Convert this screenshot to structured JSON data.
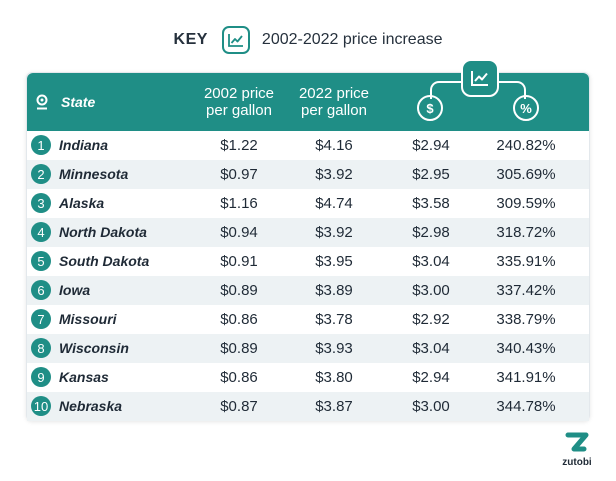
{
  "key": {
    "label": "KEY",
    "icon": "chart-line-icon",
    "description": "2002-2022 price increase"
  },
  "colors": {
    "accent": "#1f8e86",
    "row_alt": "#edf2f4",
    "text": "#1f2a36"
  },
  "header": {
    "state": "State",
    "price_2002": [
      "2002 price",
      "per gallon"
    ],
    "price_2022": [
      "2022 price",
      "per gallon"
    ],
    "dollar_icon": "dollar-icon",
    "percent_icon": "percent-icon",
    "group_icon": "chart-line-icon"
  },
  "chart_data": {
    "type": "table",
    "columns": [
      "State",
      "2002 price per gallon",
      "2022 price per gallon",
      "$",
      "%"
    ],
    "rows": [
      {
        "rank": "1",
        "state": "Indiana",
        "p2002": "$1.22",
        "p2022": "$4.16",
        "increase": "$2.94",
        "percent": "240.82%"
      },
      {
        "rank": "2",
        "state": "Minnesota",
        "p2002": "$0.97",
        "p2022": "$3.92",
        "increase": "$2.95",
        "percent": "305.69%"
      },
      {
        "rank": "3",
        "state": "Alaska",
        "p2002": "$1.16",
        "p2022": "$4.74",
        "increase": "$3.58",
        "percent": "309.59%"
      },
      {
        "rank": "4",
        "state": "North Dakota",
        "p2002": "$0.94",
        "p2022": "$3.92",
        "increase": "$2.98",
        "percent": "318.72%"
      },
      {
        "rank": "5",
        "state": "South Dakota",
        "p2002": "$0.91",
        "p2022": "$3.95",
        "increase": "$3.04",
        "percent": "335.91%"
      },
      {
        "rank": "6",
        "state": "Iowa",
        "p2002": "$0.89",
        "p2022": "$3.89",
        "increase": "$3.00",
        "percent": "337.42%"
      },
      {
        "rank": "7",
        "state": "Missouri",
        "p2002": "$0.86",
        "p2022": "$3.78",
        "increase": "$2.92",
        "percent": "338.79%"
      },
      {
        "rank": "8",
        "state": "Wisconsin",
        "p2002": "$0.89",
        "p2022": "$3.93",
        "increase": "$3.04",
        "percent": "340.43%"
      },
      {
        "rank": "9",
        "state": "Kansas",
        "p2002": "$0.86",
        "p2022": "$3.80",
        "increase": "$2.94",
        "percent": "341.91%"
      },
      {
        "rank": "10",
        "state": "Nebraska",
        "p2002": "$0.87",
        "p2022": "$3.87",
        "increase": "$3.00",
        "percent": "344.78%"
      }
    ]
  },
  "logo": {
    "icon": "zutobi-logo",
    "brand": "zutobi"
  }
}
